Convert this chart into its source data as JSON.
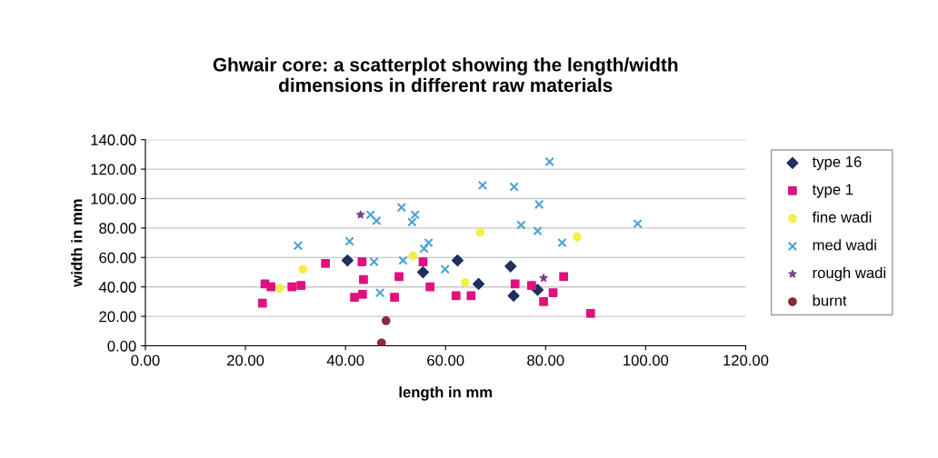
{
  "chart_data": {
    "type": "scatter",
    "title": "Ghwair core: a scatterplot showing the length/width\ndimensions in different raw materials",
    "xlabel": "length in mm",
    "ylabel": "width in mm",
    "xlim": [
      0,
      120
    ],
    "ylim": [
      0,
      140
    ],
    "xticks": [
      {
        "value": 0,
        "label": "0.00"
      },
      {
        "value": 20,
        "label": "20.00"
      },
      {
        "value": 40,
        "label": "40.00"
      },
      {
        "value": 60,
        "label": "60.00"
      },
      {
        "value": 80,
        "label": "80.00"
      },
      {
        "value": 100,
        "label": "100.00"
      },
      {
        "value": 120,
        "label": "120.00"
      }
    ],
    "yticks": [
      {
        "value": 0,
        "label": "0.00"
      },
      {
        "value": 20,
        "label": "20.00"
      },
      {
        "value": 40,
        "label": "40.00"
      },
      {
        "value": 60,
        "label": "60.00"
      },
      {
        "value": 80,
        "label": "80.00"
      },
      {
        "value": 100,
        "label": "100.00"
      },
      {
        "value": 120,
        "label": "120.00"
      },
      {
        "value": 140,
        "label": "140.00"
      }
    ],
    "grid": "y",
    "legend": "right",
    "series": [
      {
        "name": "type 16",
        "color": "#1f2f5f",
        "marker": "diamond",
        "x": [
          40.4,
          55.5,
          62.4,
          73,
          66.6,
          78.4,
          73.6
        ],
        "values": [
          58,
          50,
          58,
          54,
          42,
          38,
          34
        ]
      },
      {
        "name": "type 1",
        "color": "#e0107f",
        "marker": "square",
        "x": [
          36,
          23.9,
          25.1,
          29.3,
          31.1,
          23.4,
          43.3,
          55.5,
          43.6,
          50.7,
          56.9,
          73.9,
          77.2,
          79.6,
          41.8,
          43.4,
          49.8,
          62.1,
          65.1,
          83.6,
          81.5,
          89
        ],
        "values": [
          56,
          42,
          40,
          40,
          41,
          29,
          57,
          57,
          45,
          47,
          40,
          42,
          41,
          30,
          33,
          35,
          33,
          34,
          34,
          47,
          36,
          22
        ]
      },
      {
        "name": "fine wadi",
        "color": "#f2ee4a",
        "marker": "circle",
        "x": [
          31.5,
          26.9,
          66.9,
          63.9,
          86.3,
          53.5
        ],
        "values": [
          52,
          39,
          77,
          43,
          74,
          61
        ]
      },
      {
        "name": "med wadi",
        "color": "#4aa3d8",
        "marker": "cross",
        "x": [
          30.5,
          40.8,
          45,
          46.2,
          51.2,
          53.9,
          53.3,
          67.4,
          73.7,
          78.7,
          75.1,
          78.4,
          56.6,
          55.7,
          45.7,
          51.5,
          59.9,
          46.9,
          80.8,
          98.4,
          83.3
        ],
        "values": [
          68,
          71,
          89,
          85,
          94,
          89,
          84,
          109,
          108,
          96,
          82,
          78,
          70,
          66,
          57,
          58,
          52,
          36,
          125,
          83,
          70
        ]
      },
      {
        "name": "rough wadi",
        "color": "#7b3f8c",
        "marker": "star",
        "x": [
          43,
          79.6
        ],
        "values": [
          89,
          46
        ]
      },
      {
        "name": "burnt",
        "color": "#8b2a3a",
        "marker": "circle",
        "x": [
          48.1,
          47.2
        ],
        "values": [
          17,
          2
        ]
      }
    ]
  }
}
